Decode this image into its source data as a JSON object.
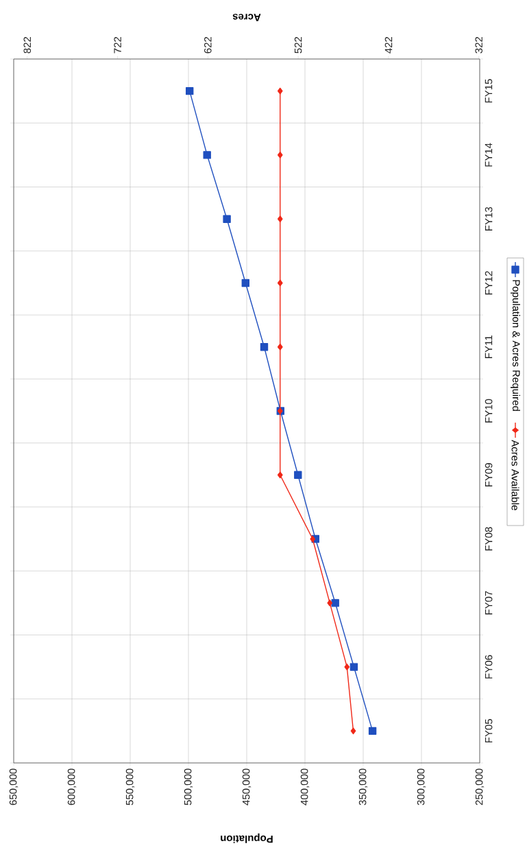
{
  "chart_data": {
    "type": "line",
    "orientation": "horizontal",
    "xlabel": "Population",
    "x2label": "Acres",
    "categories": [
      "FY15",
      "FY14",
      "FY13",
      "FY12",
      "FY11",
      "FY10",
      "FY09",
      "FY08",
      "FY07",
      "FY06",
      "FY05"
    ],
    "series": [
      {
        "name": "Population & Acres Required",
        "color": "#1f4fbf",
        "marker": "square",
        "values": [
          499000,
          484000,
          467000,
          451000,
          435000,
          421000,
          406000,
          391000,
          374000,
          358000,
          342000
        ]
      },
      {
        "name": "Acres Available",
        "color": "#f02818",
        "marker": "diamond",
        "axis": "x2",
        "values": [
          542,
          542,
          542,
          542,
          542,
          542,
          542,
          506,
          487,
          468,
          461
        ]
      }
    ],
    "xlim": [
      650000,
      250000
    ],
    "xticks": [
      {
        "value": 650000,
        "label": "650,000"
      },
      {
        "value": 600000,
        "label": "600,000"
      },
      {
        "value": 550000,
        "label": "550,000"
      },
      {
        "value": 500000,
        "label": "500,000"
      },
      {
        "value": 450000,
        "label": "450,000"
      },
      {
        "value": 400000,
        "label": "400,000"
      },
      {
        "value": 350000,
        "label": "350,000"
      },
      {
        "value": 300000,
        "label": "300,000"
      },
      {
        "value": 250000,
        "label": "250,000"
      }
    ],
    "x2lim": [
      837,
      321
    ],
    "x2ticks": [
      822,
      722,
      622,
      522,
      422,
      322
    ],
    "grid": true,
    "legend": "right"
  }
}
